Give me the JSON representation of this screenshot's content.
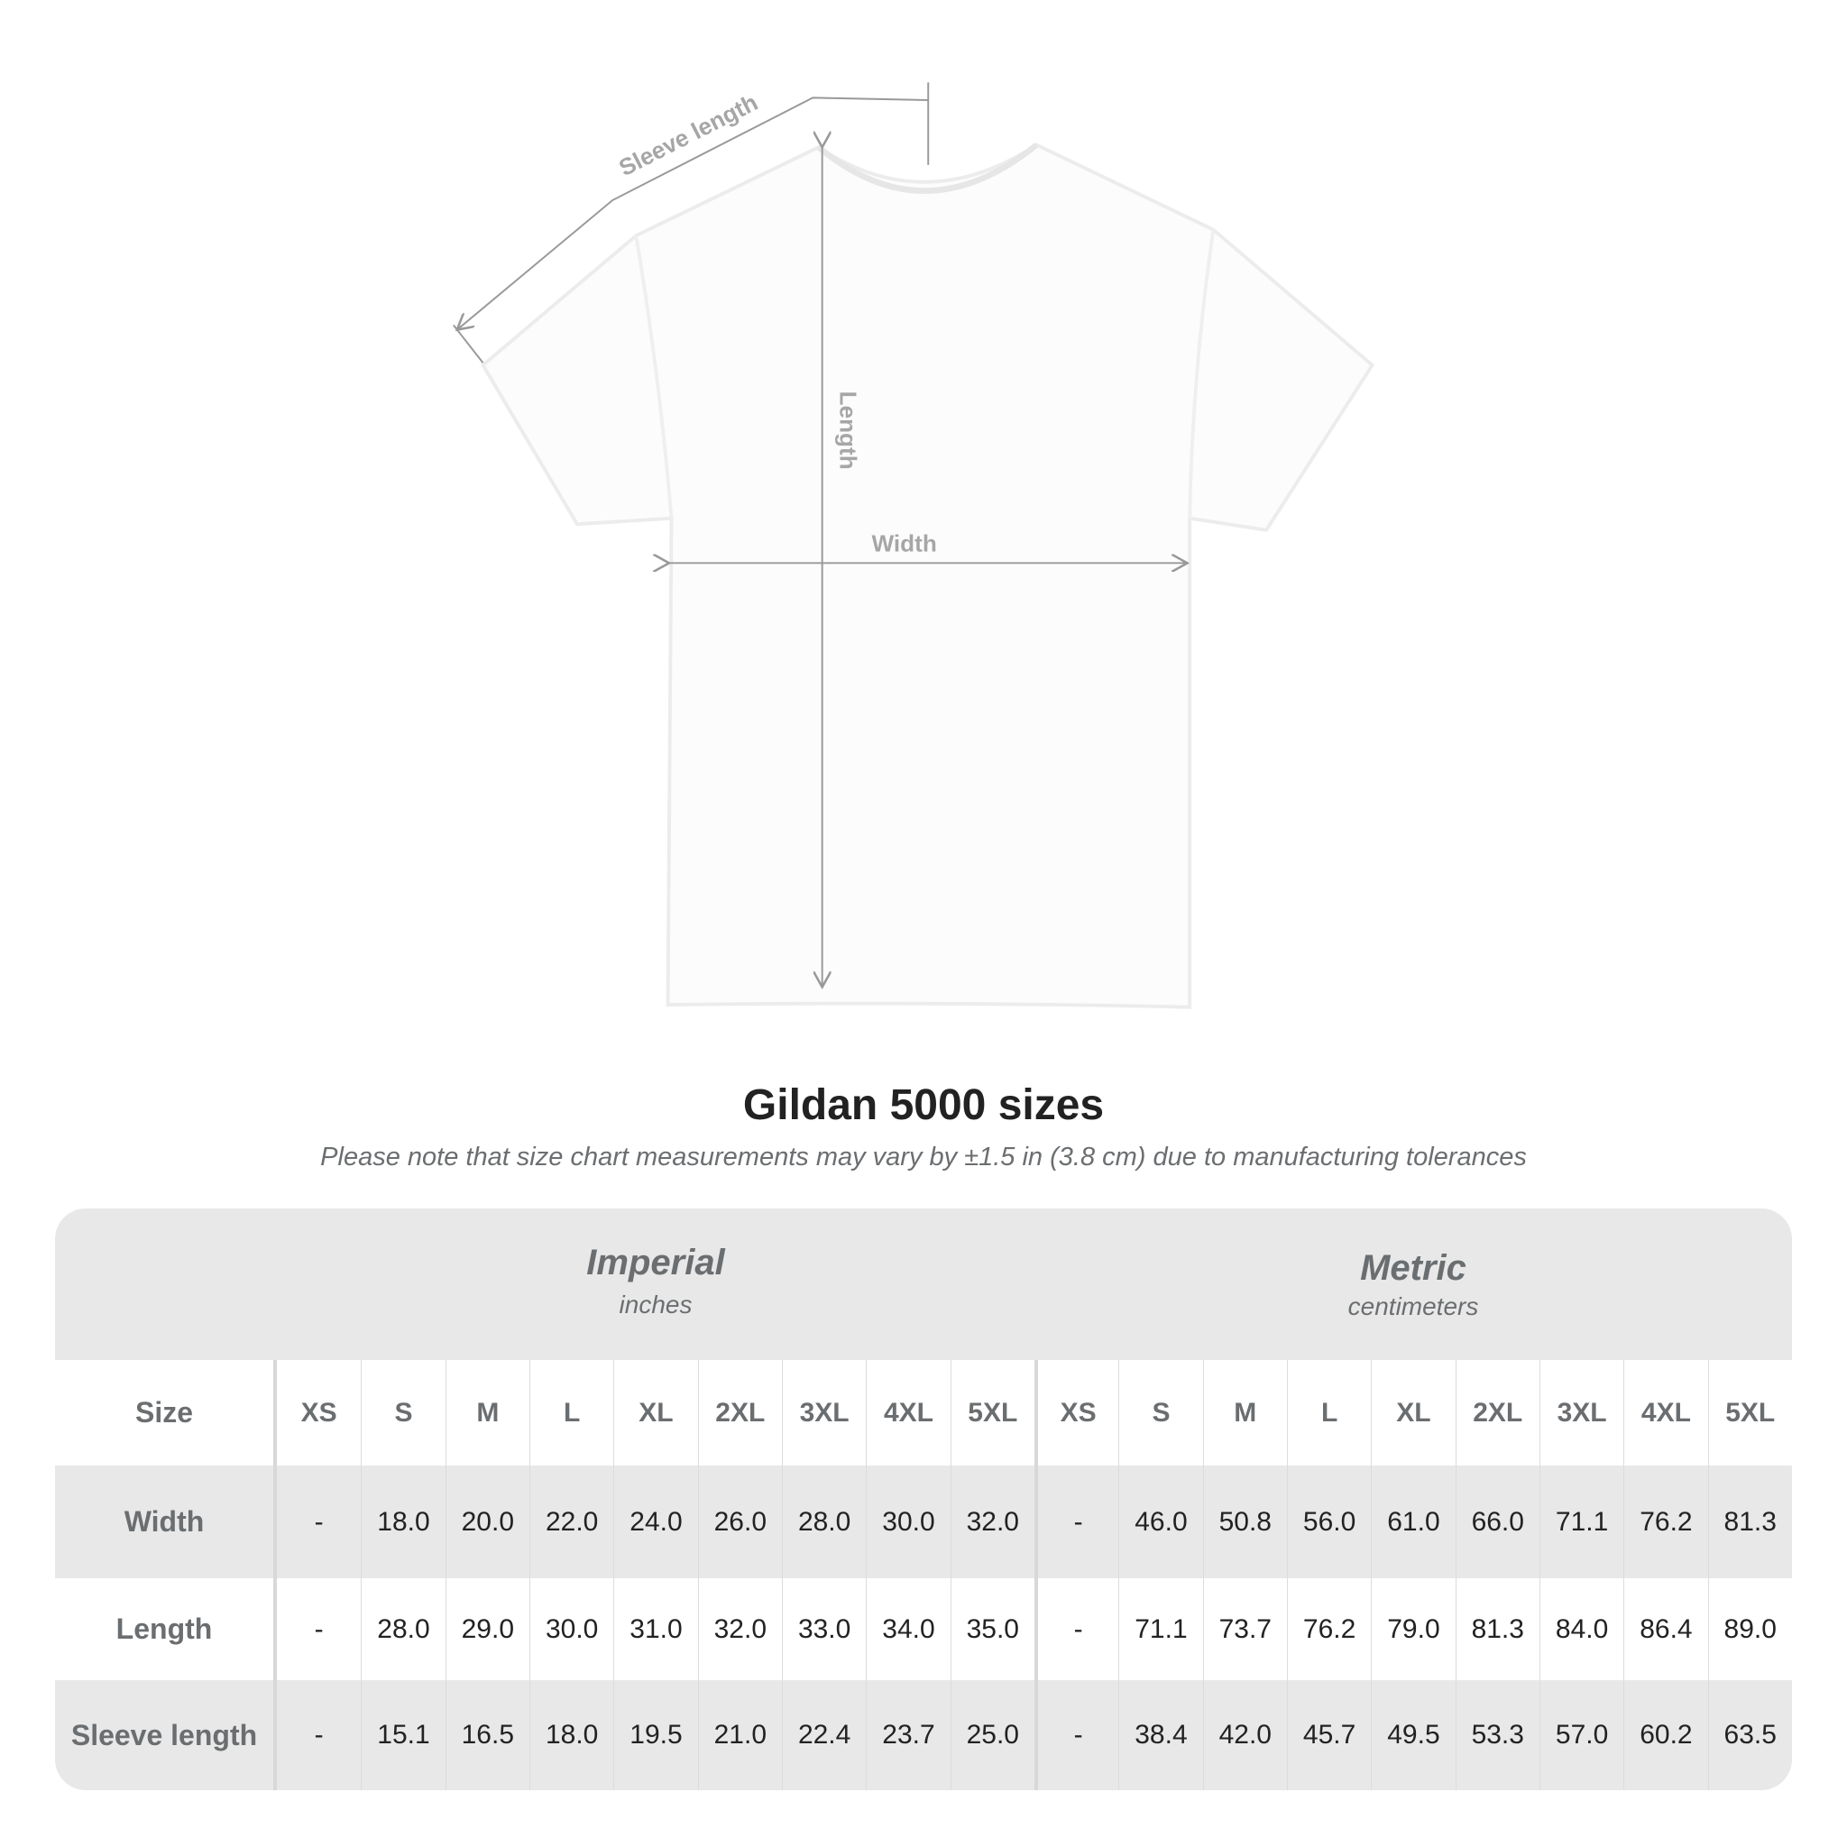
{
  "diagram": {
    "labels": {
      "sleeve": "Sleeve length",
      "length": "Length",
      "width": "Width"
    }
  },
  "title": "Gildan 5000 sizes",
  "subtitle": "Please note that size chart measurements may vary by ±1.5 in (3.8 cm) due to manufacturing tolerances",
  "table": {
    "imperial": {
      "title": "Imperial",
      "unit": "inches"
    },
    "metric": {
      "title": "Metric",
      "unit": "centimeters"
    },
    "size_label": "Size",
    "sizes": [
      "XS",
      "S",
      "M",
      "L",
      "XL",
      "2XL",
      "3XL",
      "4XL",
      "5XL"
    ],
    "rows": [
      {
        "label": "Width",
        "imperial": [
          "-",
          "18.0",
          "20.0",
          "22.0",
          "24.0",
          "26.0",
          "28.0",
          "30.0",
          "32.0"
        ],
        "metric": [
          "-",
          "46.0",
          "50.8",
          "56.0",
          "61.0",
          "66.0",
          "71.1",
          "76.2",
          "81.3"
        ]
      },
      {
        "label": "Length",
        "imperial": [
          "-",
          "28.0",
          "29.0",
          "30.0",
          "31.0",
          "32.0",
          "33.0",
          "34.0",
          "35.0"
        ],
        "metric": [
          "-",
          "71.1",
          "73.7",
          "76.2",
          "79.0",
          "81.3",
          "84.0",
          "86.4",
          "89.0"
        ]
      },
      {
        "label": "Sleeve length",
        "imperial": [
          "-",
          "15.1",
          "16.5",
          "18.0",
          "19.5",
          "21.0",
          "22.4",
          "23.7",
          "25.0"
        ],
        "metric": [
          "-",
          "38.4",
          "42.0",
          "45.7",
          "49.5",
          "53.3",
          "57.0",
          "60.2",
          "63.5"
        ]
      }
    ]
  }
}
